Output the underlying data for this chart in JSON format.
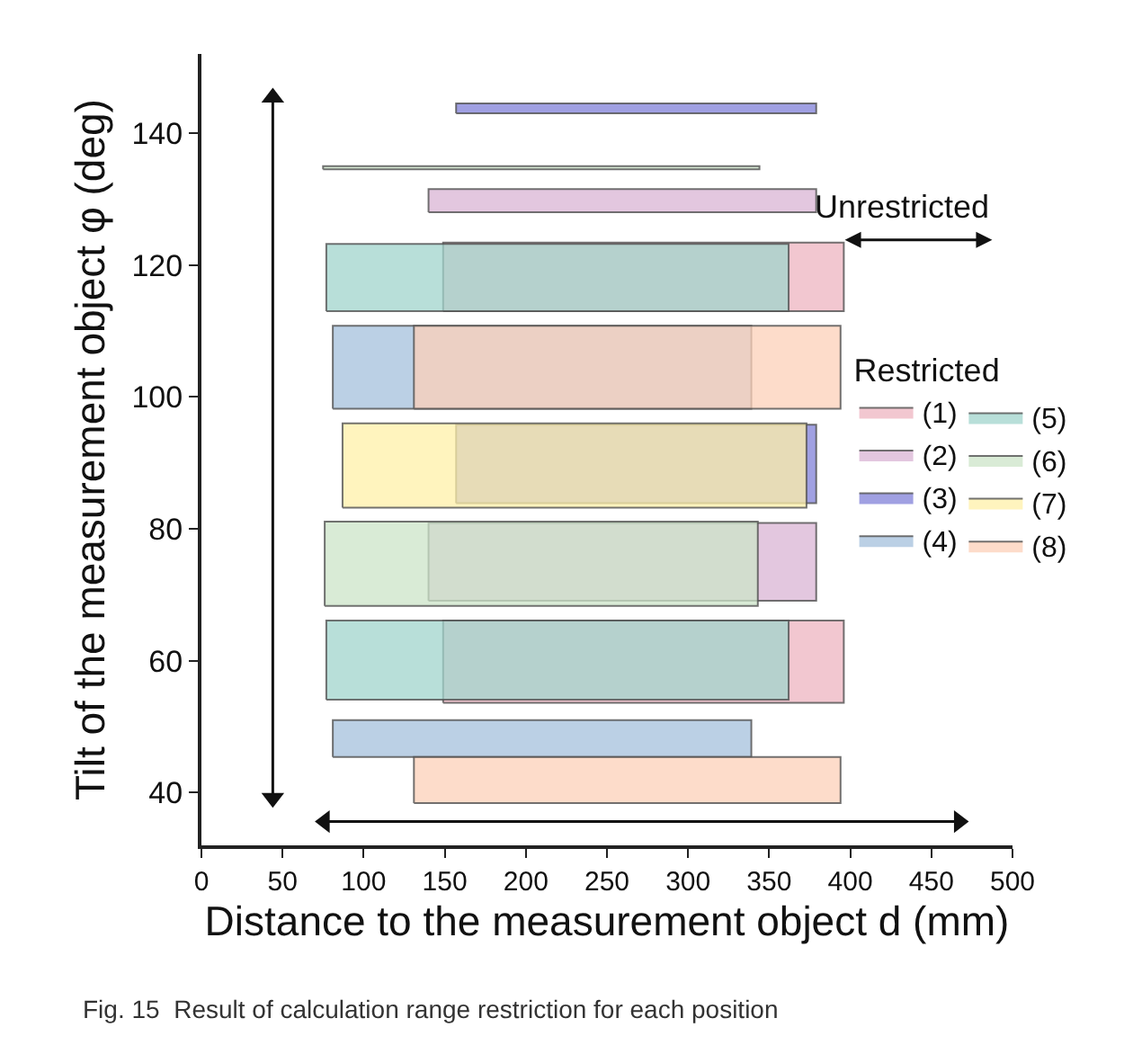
{
  "chart_data": {
    "type": "area",
    "xlabel": "Distance to the measurement object d (mm)",
    "ylabel": "Tilt of the measurement object φ (deg)",
    "legend_title": "Restricted",
    "legend": "right",
    "xlim": [
      0,
      500
    ],
    "xticks": [
      0,
      50,
      100,
      150,
      200,
      250,
      300,
      350,
      400,
      450,
      500
    ],
    "ylim": [
      32,
      152
    ],
    "yticks": [
      40,
      60,
      80,
      100,
      120,
      140
    ],
    "annotations": [
      "Unrestricted",
      "Fig. 15  Result of calculation range restriction for each position"
    ],
    "series": [
      {
        "name": "(1)",
        "color": "#eeb4c0",
        "x": [
          149,
          396,
          396,
          149,
          149,
          null,
          149,
          396,
          396,
          149,
          149
        ],
        "values": [
          113,
          113,
          123.4,
          123.4,
          113,
          null,
          53.6,
          53.6,
          66.1,
          66.1,
          53.6
        ]
      },
      {
        "name": "(2)",
        "color": "#dab4d4",
        "x": [
          140,
          379,
          379,
          140,
          140,
          null,
          140,
          379,
          379,
          140,
          140
        ],
        "values": [
          128,
          128,
          131.5,
          131.5,
          128,
          null,
          69.1,
          69.1,
          80.9,
          80.9,
          69.1
        ]
      },
      {
        "name": "(3)",
        "color": "#8080d8",
        "x": [
          157,
          379,
          379,
          157,
          157,
          null,
          157,
          379,
          379,
          157,
          157
        ],
        "values": [
          143,
          143,
          144.5,
          144.5,
          143,
          null,
          83.9,
          83.9,
          95.8,
          95.8,
          83.9
        ]
      },
      {
        "name": "(4)",
        "color": "#a4c0dc",
        "x": [
          81,
          339,
          339,
          81,
          81,
          null,
          81,
          339,
          339,
          81,
          81
        ],
        "values": [
          98.2,
          98.2,
          110.8,
          110.8,
          98.2,
          null,
          45.4,
          45.4,
          51,
          51,
          45.4
        ]
      },
      {
        "name": "(5)",
        "color": "#a0d4cc",
        "x": [
          77,
          362,
          362,
          77,
          77,
          null,
          77,
          362,
          362,
          77,
          77
        ],
        "values": [
          113,
          113,
          123.2,
          123.2,
          113,
          null,
          54.1,
          54.1,
          66.1,
          66.1,
          54.1
        ]
      },
      {
        "name": "(6)",
        "color": "#cce4c8",
        "x": [
          76,
          343,
          343,
          76,
          76,
          null,
          75,
          344,
          344,
          75,
          75
        ],
        "values": [
          68.3,
          68.3,
          81.1,
          81.1,
          68.3,
          null,
          134.5,
          134.5,
          135,
          135,
          134.5
        ]
      },
      {
        "name": "(7)",
        "color": "#fff0a8",
        "x": [
          87,
          373,
          373,
          87,
          87
        ],
        "values": [
          83.2,
          83.2,
          96,
          96,
          83.2
        ]
      },
      {
        "name": "(8)",
        "color": "#fcd0b8",
        "x": [
          131,
          394,
          394,
          131,
          131,
          null,
          131,
          394,
          394,
          131,
          131
        ],
        "values": [
          98.2,
          98.2,
          110.8,
          110.8,
          98.2,
          null,
          38.4,
          38.4,
          45.4,
          45.4,
          38.4
        ]
      },
      {
        "type": "line",
        "marker": "triangle",
        "color": "#111111",
        "x": [
          44,
          44
        ],
        "values": [
          39.2,
          145.4
        ]
      },
      {
        "type": "line",
        "marker": "triangle",
        "color": "#111111",
        "x": [
          76,
          467
        ],
        "values": [
          35.6,
          35.6
        ]
      }
    ]
  }
}
